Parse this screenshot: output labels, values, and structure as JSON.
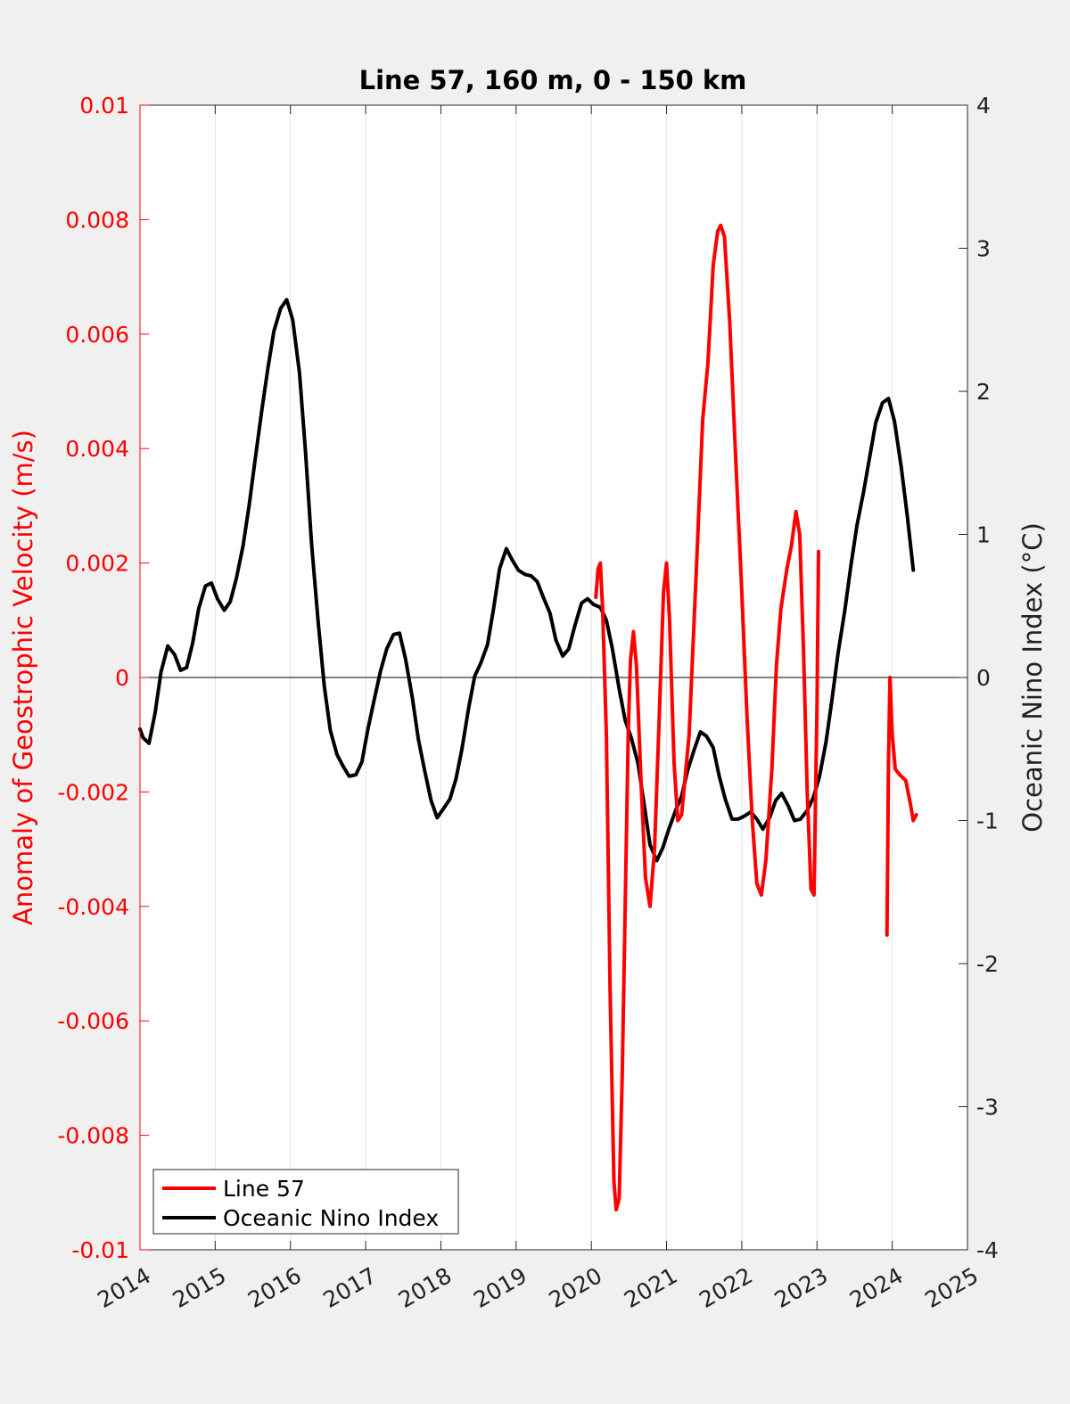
{
  "chart_data": {
    "type": "line",
    "title": "Line 57, 160 m, 0 - 150 km",
    "xlim": [
      2014,
      2025
    ],
    "x_ticks": [
      2014,
      2015,
      2016,
      2017,
      2018,
      2019,
      2020,
      2021,
      2022,
      2023,
      2024,
      2025
    ],
    "x_tick_labels": [
      "2014",
      "2015",
      "2016",
      "2017",
      "2018",
      "2019",
      "2020",
      "2021",
      "2022",
      "2023",
      "2024",
      "2025"
    ],
    "left_axis": {
      "label": "Anomaly of Geostrophic Velocity (m/s)",
      "ylim": [
        -0.01,
        0.01
      ],
      "ticks": [
        -0.01,
        -0.008,
        -0.006,
        -0.004,
        -0.002,
        0,
        0.002,
        0.004,
        0.006,
        0.008,
        0.01
      ],
      "tick_labels": [
        "-0.01",
        "-0.008",
        "-0.006",
        "-0.004",
        "-0.002",
        "0",
        "0.002",
        "0.004",
        "0.006",
        "0.008",
        "0.01"
      ],
      "color": "#ff0000"
    },
    "right_axis": {
      "label": "Oceanic Nino Index (°C)",
      "ylim": [
        -4,
        4
      ],
      "ticks": [
        -4,
        -3,
        -2,
        -1,
        0,
        1,
        2,
        3,
        4
      ],
      "tick_labels": [
        "-4",
        "-3",
        "-2",
        "-1",
        "0",
        "1",
        "2",
        "3",
        "4"
      ],
      "color": "#222222"
    },
    "grid": "vertical",
    "zero_line": true,
    "legend": {
      "placement": "bottom-left"
    },
    "series": [
      {
        "name": "Line 57",
        "axis": "left",
        "color": "#ff0000",
        "segments": [
          [
            [
              2020.06,
              0.0014
            ],
            [
              2020.09,
              0.0019
            ],
            [
              2020.12,
              0.002
            ],
            [
              2020.15,
              0.0012
            ],
            [
              2020.2,
              -0.001
            ],
            [
              2020.25,
              -0.0055
            ],
            [
              2020.3,
              -0.0088
            ],
            [
              2020.33,
              -0.0093
            ],
            [
              2020.37,
              -0.0091
            ],
            [
              2020.41,
              -0.007
            ],
            [
              2020.45,
              -0.004
            ],
            [
              2020.49,
              -0.001
            ],
            [
              2020.52,
              0.0003
            ],
            [
              2020.56,
              0.0008
            ],
            [
              2020.6,
              0.0002
            ],
            [
              2020.66,
              -0.0018
            ],
            [
              2020.72,
              -0.0035
            ],
            [
              2020.78,
              -0.004
            ],
            [
              2020.84,
              -0.003
            ],
            [
              2020.9,
              -0.0008
            ],
            [
              2020.96,
              0.0015
            ],
            [
              2021.0,
              0.002
            ],
            [
              2021.04,
              0.001
            ],
            [
              2021.1,
              -0.0015
            ],
            [
              2021.15,
              -0.0025
            ],
            [
              2021.2,
              -0.0024
            ],
            [
              2021.3,
              -0.001
            ],
            [
              2021.4,
              0.002
            ],
            [
              2021.48,
              0.0045
            ],
            [
              2021.55,
              0.0055
            ],
            [
              2021.62,
              0.0072
            ],
            [
              2021.68,
              0.0078
            ],
            [
              2021.72,
              0.0079
            ],
            [
              2021.77,
              0.0077
            ],
            [
              2021.84,
              0.0062
            ],
            [
              2021.92,
              0.0038
            ],
            [
              2022.0,
              0.0015
            ],
            [
              2022.07,
              -0.0007
            ],
            [
              2022.14,
              -0.0025
            ],
            [
              2022.2,
              -0.0036
            ],
            [
              2022.26,
              -0.0038
            ],
            [
              2022.32,
              -0.0032
            ],
            [
              2022.4,
              -0.0016
            ],
            [
              2022.46,
              0.0002
            ],
            [
              2022.52,
              0.0012
            ],
            [
              2022.6,
              0.0019
            ],
            [
              2022.66,
              0.0023
            ],
            [
              2022.72,
              0.0029
            ],
            [
              2022.77,
              0.0025
            ],
            [
              2022.82,
              0.0005
            ],
            [
              2022.87,
              -0.002
            ],
            [
              2022.92,
              -0.0037
            ],
            [
              2022.96,
              -0.0038
            ],
            [
              2023.0,
              -0.0005
            ],
            [
              2023.02,
              0.0022
            ]
          ],
          [
            [
              2023.93,
              -0.0045
            ],
            [
              2023.95,
              -0.0015
            ],
            [
              2023.97,
              0.0
            ],
            [
              2024.0,
              -0.001
            ],
            [
              2024.04,
              -0.0016
            ],
            [
              2024.1,
              -0.0017
            ],
            [
              2024.18,
              -0.0018
            ],
            [
              2024.24,
              -0.0022
            ],
            [
              2024.28,
              -0.0025
            ],
            [
              2024.32,
              -0.0024
            ]
          ]
        ]
      },
      {
        "name": "Oceanic Nino Index",
        "axis": "right",
        "color": "#000000",
        "segments": [
          [
            [
              2014.0,
              -0.36
            ],
            [
              2014.04,
              -0.42
            ],
            [
              2014.12,
              -0.46
            ],
            [
              2014.2,
              -0.25
            ],
            [
              2014.28,
              0.04
            ],
            [
              2014.37,
              0.22
            ],
            [
              2014.46,
              0.16
            ],
            [
              2014.54,
              0.05
            ],
            [
              2014.62,
              0.07
            ],
            [
              2014.7,
              0.24
            ],
            [
              2014.78,
              0.48
            ],
            [
              2014.87,
              0.64
            ],
            [
              2014.95,
              0.66
            ],
            [
              2015.03,
              0.55
            ],
            [
              2015.12,
              0.47
            ],
            [
              2015.2,
              0.53
            ],
            [
              2015.28,
              0.69
            ],
            [
              2015.37,
              0.92
            ],
            [
              2015.45,
              1.2
            ],
            [
              2015.53,
              1.52
            ],
            [
              2015.62,
              1.87
            ],
            [
              2015.7,
              2.16
            ],
            [
              2015.78,
              2.42
            ],
            [
              2015.87,
              2.58
            ],
            [
              2015.95,
              2.64
            ],
            [
              2016.03,
              2.5
            ],
            [
              2016.12,
              2.13
            ],
            [
              2016.2,
              1.58
            ],
            [
              2016.28,
              0.94
            ],
            [
              2016.37,
              0.38
            ],
            [
              2016.45,
              -0.06
            ],
            [
              2016.53,
              -0.37
            ],
            [
              2016.62,
              -0.54
            ],
            [
              2016.7,
              -0.62
            ],
            [
              2016.78,
              -0.69
            ],
            [
              2016.87,
              -0.68
            ],
            [
              2016.95,
              -0.59
            ],
            [
              2017.03,
              -0.36
            ],
            [
              2017.12,
              -0.14
            ],
            [
              2017.2,
              0.05
            ],
            [
              2017.28,
              0.2
            ],
            [
              2017.37,
              0.3
            ],
            [
              2017.45,
              0.31
            ],
            [
              2017.53,
              0.13
            ],
            [
              2017.62,
              -0.14
            ],
            [
              2017.7,
              -0.43
            ],
            [
              2017.78,
              -0.64
            ],
            [
              2017.87,
              -0.86
            ],
            [
              2017.95,
              -0.98
            ],
            [
              2018.03,
              -0.92
            ],
            [
              2018.12,
              -0.85
            ],
            [
              2018.2,
              -0.71
            ],
            [
              2018.28,
              -0.5
            ],
            [
              2018.37,
              -0.21
            ],
            [
              2018.45,
              0.01
            ],
            [
              2018.53,
              0.1
            ],
            [
              2018.62,
              0.23
            ],
            [
              2018.7,
              0.48
            ],
            [
              2018.78,
              0.76
            ],
            [
              2018.87,
              0.9
            ],
            [
              2018.95,
              0.82
            ],
            [
              2019.03,
              0.75
            ],
            [
              2019.12,
              0.72
            ],
            [
              2019.2,
              0.71
            ],
            [
              2019.28,
              0.67
            ],
            [
              2019.37,
              0.55
            ],
            [
              2019.45,
              0.45
            ],
            [
              2019.53,
              0.26
            ],
            [
              2019.62,
              0.15
            ],
            [
              2019.7,
              0.2
            ],
            [
              2019.78,
              0.36
            ],
            [
              2019.87,
              0.52
            ],
            [
              2019.95,
              0.55
            ],
            [
              2020.03,
              0.51
            ],
            [
              2020.12,
              0.49
            ],
            [
              2020.2,
              0.4
            ],
            [
              2020.28,
              0.2
            ],
            [
              2020.37,
              -0.08
            ],
            [
              2020.45,
              -0.3
            ],
            [
              2020.53,
              -0.42
            ],
            [
              2020.62,
              -0.6
            ],
            [
              2020.7,
              -0.88
            ],
            [
              2020.78,
              -1.17
            ],
            [
              2020.87,
              -1.28
            ],
            [
              2020.95,
              -1.19
            ],
            [
              2021.03,
              -1.06
            ],
            [
              2021.12,
              -0.93
            ],
            [
              2021.2,
              -0.83
            ],
            [
              2021.28,
              -0.65
            ],
            [
              2021.37,
              -0.5
            ],
            [
              2021.45,
              -0.38
            ],
            [
              2021.53,
              -0.41
            ],
            [
              2021.62,
              -0.49
            ],
            [
              2021.7,
              -0.69
            ],
            [
              2021.78,
              -0.85
            ],
            [
              2021.87,
              -0.99
            ],
            [
              2021.95,
              -0.99
            ],
            [
              2022.03,
              -0.97
            ],
            [
              2022.12,
              -0.94
            ],
            [
              2022.2,
              -0.99
            ],
            [
              2022.28,
              -1.06
            ],
            [
              2022.37,
              -0.98
            ],
            [
              2022.45,
              -0.86
            ],
            [
              2022.53,
              -0.81
            ],
            [
              2022.62,
              -0.9
            ],
            [
              2022.7,
              -1.0
            ],
            [
              2022.78,
              -0.99
            ],
            [
              2022.87,
              -0.93
            ],
            [
              2022.95,
              -0.84
            ],
            [
              2023.03,
              -0.7
            ],
            [
              2023.12,
              -0.45
            ],
            [
              2023.2,
              -0.15
            ],
            [
              2023.28,
              0.17
            ],
            [
              2023.37,
              0.47
            ],
            [
              2023.45,
              0.78
            ],
            [
              2023.53,
              1.06
            ],
            [
              2023.62,
              1.3
            ],
            [
              2023.7,
              1.54
            ],
            [
              2023.78,
              1.78
            ],
            [
              2023.87,
              1.92
            ],
            [
              2023.95,
              1.95
            ],
            [
              2024.03,
              1.79
            ],
            [
              2024.12,
              1.47
            ],
            [
              2024.2,
              1.13
            ],
            [
              2024.28,
              0.75
            ]
          ]
        ]
      }
    ]
  }
}
